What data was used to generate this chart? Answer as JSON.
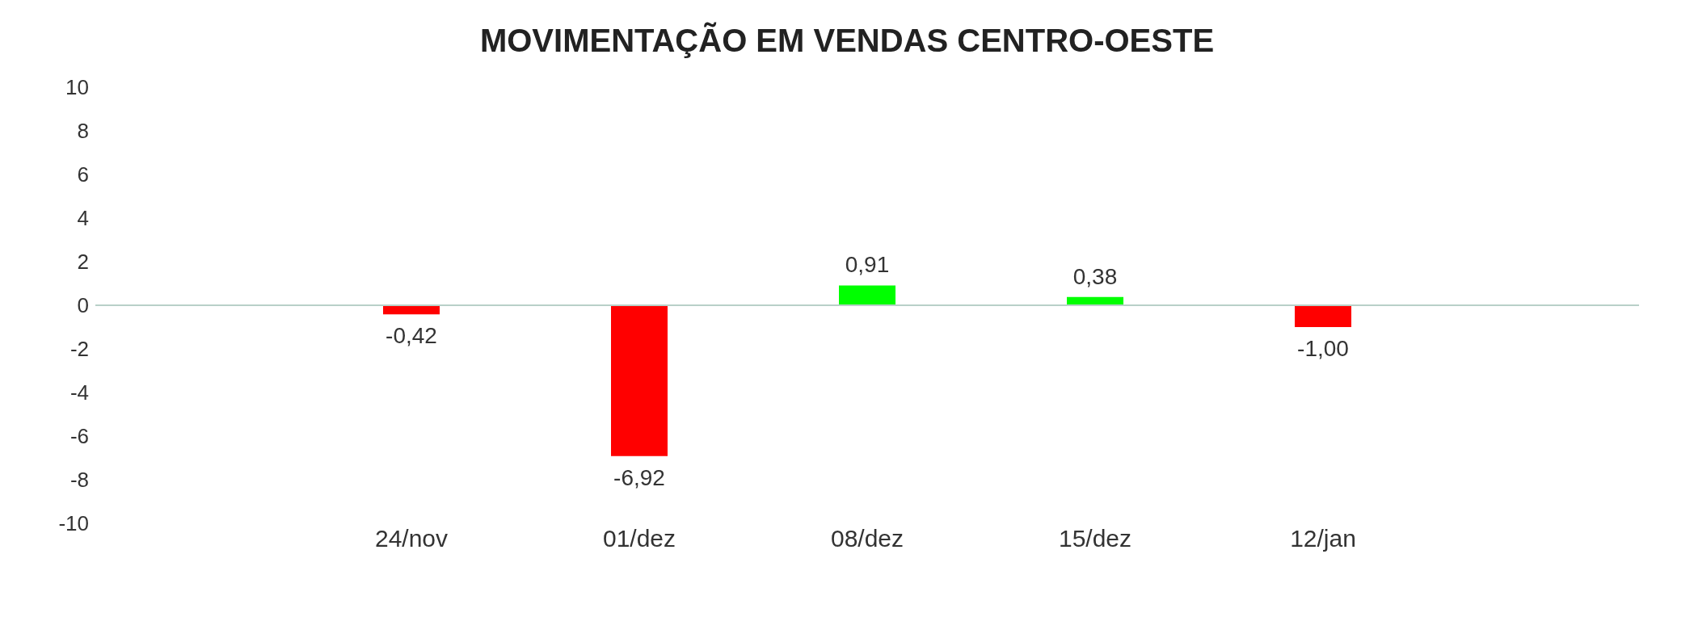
{
  "chart_data": {
    "type": "bar",
    "title": "MOVIMENTAÇÃO EM VENDAS CENTRO-OESTE",
    "categories": [
      "24/nov",
      "01/dez",
      "08/dez",
      "15/dez",
      "12/jan"
    ],
    "values": [
      -0.42,
      -6.92,
      0.91,
      0.38,
      -1.0
    ],
    "colors": [
      "#ff0000",
      "#ff0000",
      "#00ff00",
      "#00ff00",
      "#ff0000"
    ],
    "value_labels": [
      "-0,42",
      "-6,92",
      "0,91",
      "0,38",
      "-1,00"
    ],
    "ylim": [
      -10,
      10
    ],
    "yticks": [
      -10,
      -8,
      -6,
      -4,
      -2,
      0,
      2,
      4,
      6,
      8,
      10
    ]
  }
}
